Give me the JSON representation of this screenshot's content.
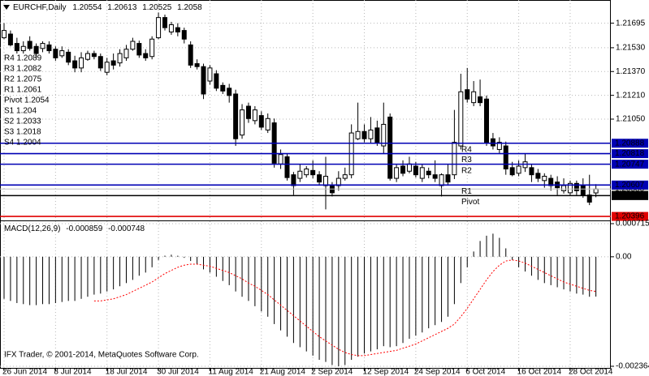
{
  "chart_data": {
    "type": "candlestick",
    "title": "EURCHF,Daily",
    "categories": [
      "26 Jun 2014",
      null,
      null,
      null,
      null,
      null,
      null,
      null,
      "8 Jul 2014",
      null,
      null,
      null,
      null,
      null,
      null,
      null,
      "18 Jul 2014",
      null,
      null,
      null,
      null,
      null,
      null,
      null,
      "30 Jul 2014",
      null,
      null,
      null,
      null,
      null,
      null,
      null,
      "11 Aug 2014",
      null,
      null,
      null,
      null,
      null,
      null,
      null,
      "21 Aug 2014",
      null,
      null,
      null,
      null,
      null,
      null,
      null,
      "2 Sep 2014",
      null,
      null,
      null,
      null,
      null,
      null,
      null,
      "12 Sep 2014",
      null,
      null,
      null,
      null,
      null,
      null,
      null,
      "24 Sep 2014",
      null,
      null,
      null,
      null,
      null,
      null,
      null,
      "6 Oct 2014",
      null,
      null,
      null,
      null,
      null,
      null,
      null,
      "16 Oct 2014",
      null,
      null,
      null,
      null,
      null,
      null,
      null,
      "28 Oct 2014",
      null,
      null,
      null,
      null
    ],
    "open": [
      1.21597,
      1.21622,
      1.21559,
      1.2151,
      1.21573,
      1.21539,
      1.21525,
      1.21549,
      1.2152,
      1.21476,
      1.215,
      1.21442,
      1.21394,
      1.21452,
      1.21491,
      1.21471,
      1.21365,
      1.21442,
      1.21428,
      1.21462,
      1.2152,
      1.21559,
      1.21491,
      1.21471,
      1.21597,
      1.21733,
      1.21636,
      1.21665,
      1.21646,
      1.21549,
      1.21423,
      1.21403,
      1.21306,
      1.21355,
      1.21277,
      1.21258,
      1.21219,
      1.20943,
      1.21137,
      1.2104,
      1.21074,
      1.20977,
      1.21025,
      1.20749,
      1.20797,
      1.20676,
      1.20652,
      1.20676,
      1.20705,
      1.20676,
      1.20603,
      1.20603,
      1.20603,
      1.20652,
      1.20676,
      1.20918,
      1.20967,
      1.20918,
      1.20991,
      1.2087,
      1.21064,
      1.20652,
      1.20734,
      1.207,
      1.20734,
      1.20652,
      1.207,
      1.20676,
      1.20603,
      1.20676,
      1.20676,
      1.2087,
      1.21248,
      1.21161,
      1.212,
      1.21185,
      1.20918,
      1.20846,
      1.2087,
      1.20724,
      1.20686,
      1.20724,
      1.20724,
      1.20686,
      1.20637,
      1.20652,
      1.20627,
      1.20569,
      1.20555,
      1.20618,
      1.20603,
      1.2054,
      1.20554
    ],
    "high": [
      1.21695,
      1.21646,
      1.21597,
      1.21573,
      1.21607,
      1.21559,
      1.21573,
      1.21573,
      1.21539,
      1.21539,
      1.2152,
      1.21476,
      1.215,
      1.2151,
      1.2151,
      1.21491,
      1.21462,
      1.21491,
      1.2152,
      1.21549,
      1.21597,
      1.21578,
      1.2152,
      1.21607,
      1.21767,
      1.21753,
      1.21704,
      1.21695,
      1.21665,
      1.21573,
      1.21452,
      1.21423,
      1.21413,
      1.21379,
      1.21297,
      1.21287,
      1.21248,
      1.21151,
      1.21161,
      1.21137,
      1.21103,
      1.21088,
      1.21054,
      1.20846,
      1.20821,
      1.20695,
      1.20749,
      1.20734,
      1.20773,
      1.207,
      1.20797,
      1.20627,
      1.207,
      1.20724,
      1.21015,
      1.21161,
      1.21015,
      1.21064,
      1.2104,
      1.21161,
      1.21088,
      1.20749,
      1.20773,
      1.20797,
      1.20763,
      1.20749,
      1.20724,
      1.20773,
      1.20686,
      1.20749,
      1.21112,
      1.21355,
      1.21394,
      1.21306,
      1.21316,
      1.21209,
      1.20957,
      1.20928,
      1.20899,
      1.20763,
      1.20773,
      1.20821,
      1.20749,
      1.20715,
      1.20686,
      1.20676,
      1.20666,
      1.20652,
      1.20637,
      1.20637,
      1.20652,
      1.20676,
      1.20613
    ],
    "low": [
      1.21588,
      1.21539,
      1.21491,
      1.21491,
      1.2151,
      1.21462,
      1.215,
      1.21491,
      1.21442,
      1.21462,
      1.21413,
      1.21365,
      1.21365,
      1.21442,
      1.21452,
      1.21374,
      1.21345,
      1.21384,
      1.21403,
      1.21442,
      1.2151,
      1.21462,
      1.21442,
      1.21452,
      1.21588,
      1.21646,
      1.21617,
      1.21607,
      1.21559,
      1.21394,
      1.21384,
      1.21185,
      1.21282,
      1.21239,
      1.21219,
      1.21161,
      1.2087,
      1.20918,
      1.21025,
      1.21015,
      1.20977,
      1.20957,
      1.20724,
      1.20715,
      1.20637,
      1.2054,
      1.20627,
      1.20657,
      1.20652,
      1.20603,
      1.20443,
      1.2053,
      1.20569,
      1.20637,
      1.20652,
      1.20909,
      1.20894,
      1.20889,
      1.2087,
      1.20821,
      1.20637,
      1.20627,
      1.20666,
      1.20686,
      1.20657,
      1.20627,
      1.20652,
      1.20627,
      1.2053,
      1.20603,
      1.20647,
      1.20846,
      1.21161,
      1.21137,
      1.21137,
      1.2087,
      1.20846,
      1.20821,
      1.20676,
      1.20666,
      1.20666,
      1.20695,
      1.20627,
      1.20627,
      1.20589,
      1.20569,
      1.2054,
      1.2055,
      1.2054,
      1.2054,
      1.20521,
      1.20472,
      1.20525
    ],
    "close": [
      1.21646,
      1.21549,
      1.2151,
      1.21539,
      1.21525,
      1.21491,
      1.21559,
      1.2151,
      1.21462,
      1.2151,
      1.21433,
      1.21394,
      1.21462,
      1.21491,
      1.21471,
      1.21394,
      1.21433,
      1.21413,
      1.21491,
      1.2152,
      1.21573,
      1.21481,
      1.21462,
      1.21588,
      1.21733,
      1.21665,
      1.21685,
      1.21636,
      1.21588,
      1.21413,
      1.21403,
      1.21219,
      1.21394,
      1.21258,
      1.21239,
      1.21209,
      1.20918,
      1.21112,
      1.21054,
      1.21112,
      1.20996,
      1.21054,
      1.20754,
      1.20812,
      1.20657,
      1.20603,
      1.207,
      1.20715,
      1.20676,
      1.20627,
      1.20666,
      1.20555,
      1.20652,
      1.20676,
      1.20957,
      1.20967,
      1.20918,
      1.20977,
      1.20894,
      1.21015,
      1.20652,
      1.20724,
      1.20686,
      1.20749,
      1.20676,
      1.20724,
      1.20676,
      1.20652,
      1.20676,
      1.20627,
      1.20894,
      1.21234,
      1.21185,
      1.21234,
      1.21161,
      1.20894,
      1.2087,
      1.20894,
      1.20715,
      1.20676,
      1.20734,
      1.20763,
      1.20676,
      1.20652,
      1.20666,
      1.20603,
      1.20589,
      1.20603,
      1.20618,
      1.20569,
      1.2054,
      1.20492,
      1.2058
    ],
    "bull_color": "#ffffff",
    "bear_color": "#000000",
    "ylim": [
      1.2038,
      1.2184
    ],
    "yticks": [
      {
        "value": 1.2105,
        "label": "1.21050"
      },
      {
        "value": 1.2121,
        "label": "1.21210"
      },
      {
        "value": 1.2137,
        "label": "1.21370"
      },
      {
        "value": 1.2153,
        "label": "1.21530"
      },
      1.21695
    ],
    "grid": true,
    "bid": {
      "value": 1.2058,
      "value_label": "1.20580",
      "color": "#c0c0c0"
    },
    "levels": [
      {
        "name": "R4",
        "value": 1.20888,
        "color": "#0000b4"
      },
      {
        "name": "R3",
        "value": 1.20818,
        "color": "#0000b4"
      },
      {
        "name": "R2",
        "value": 1.20747,
        "color": "#0000b4"
      },
      {
        "name": "R1",
        "value": 1.20607,
        "color": "#0000b4"
      },
      {
        "name": "Pivot",
        "value": 1.20536,
        "color": "#000000"
      },
      {
        "value": 1.20396,
        "color": "#e00000"
      }
    ],
    "level_name_color": "#d22020",
    "pivot_table": [
      "R4 1.2089",
      "R3 1.2082",
      "R2 1.2075",
      "R1 1.2061",
      "Pivot 1.2054",
      "S1 1.204",
      "S2 1.2033",
      "S3 1.2018",
      "S4 1.2004"
    ],
    "footer": "IFX Trader, © 2001-2014, MetaQuotes Software Corp.",
    "macd": {
      "type": "macd",
      "title": "MACD(12,26,9)",
      "color": "#000000",
      "signal_color": "#ff0000",
      "ylim": [
        -0.002364,
        0.000715
      ],
      "yticks": [
        -0.002364,
        {
          "value": 0,
          "label": "0.00"
        },
        0.000715
      ],
      "values": [
        -0.000908,
        -0.000953,
        -0.000999,
        -0.001022,
        -0.001044,
        -0.001044,
        -0.001022,
        -0.001022,
        -0.000999,
        -0.000976,
        -0.000953,
        -0.000953,
        -0.000908,
        -0.000863,
        -0.000817,
        -0.000795,
        -0.000749,
        -0.000704,
        -0.000636,
        -0.000568,
        -0.000499,
        -0.000409,
        -0.000341,
        -0.000227,
        -6.8e-05,
        2.3e-05,
        4.5e-05,
        2.3e-05,
        -2.3e-05,
        -9.1e-05,
        -0.000159,
        -0.000272,
        -0.000341,
        -0.000431,
        -0.000522,
        -0.000613,
        -0.000749,
        -0.000863,
        -0.000953,
        -0.001067,
        -0.00118,
        -0.001294,
        -0.001453,
        -0.001589,
        -0.001725,
        -0.001861,
        -0.001952,
        -0.002043,
        -0.002134,
        -0.002225,
        -0.00227,
        -0.002338,
        -0.002364,
        -0.002338,
        -0.002225,
        -0.002157,
        -0.002088,
        -0.002043,
        -0.001998,
        -0.00193,
        -0.001952,
        -0.00193,
        -0.001861,
        -0.001771,
        -0.001703,
        -0.001634,
        -0.001544,
        -0.001476,
        -0.001407,
        -0.001294,
        -0.001022,
        -0.000568,
        -0.000227,
        0.000114,
        0.000341,
        0.000454,
        0.000499,
        0.000409,
        0.000182,
        -6.8e-05,
        -0.000227,
        -0.000318,
        -0.000409,
        -0.000499,
        -0.000568,
        -0.000613,
        -0.000658,
        -0.000704,
        -0.000749,
        -0.000795,
        -0.000817,
        -0.000863,
        -0.000859
      ],
      "signal": [
        null,
        null,
        null,
        null,
        null,
        null,
        null,
        null,
        null,
        null,
        null,
        null,
        null,
        null,
        -0.000953,
        -0.000953,
        -0.000931,
        -0.000908,
        -0.000863,
        -0.000817,
        -0.000749,
        -0.000681,
        -0.000613,
        -0.000545,
        -0.000454,
        -0.000363,
        -0.000295,
        -0.000227,
        -0.000182,
        -0.000159,
        -0.000159,
        -0.000182,
        -0.000204,
        -0.00025,
        -0.000295,
        -0.000341,
        -0.000409,
        -0.000477,
        -0.000568,
        -0.000636,
        -0.000726,
        -0.000817,
        -0.000931,
        -0.001044,
        -0.001158,
        -0.001271,
        -0.001385,
        -0.001498,
        -0.001612,
        -0.001725,
        -0.001816,
        -0.001907,
        -0.001998,
        -0.002066,
        -0.002111,
        -0.002134,
        -0.002134,
        -0.002111,
        -0.002088,
        -0.002066,
        -0.002043,
        -0.00202,
        -0.001975,
        -0.00193,
        -0.001884,
        -0.001816,
        -0.001748,
        -0.00168,
        -0.001612,
        -0.001544,
        -0.001453,
        -0.001294,
        -0.001112,
        -0.000908,
        -0.000704,
        -0.000499,
        -0.000318,
        -0.000182,
        -9.1e-05,
        -6.8e-05,
        -9.1e-05,
        -0.000136,
        -0.000204,
        -0.000272,
        -0.000341,
        -0.000409,
        -0.000477,
        -0.000545,
        -0.00059,
        -0.000636,
        -0.000681,
        -0.000726,
        -0.000748
      ]
    }
  }
}
